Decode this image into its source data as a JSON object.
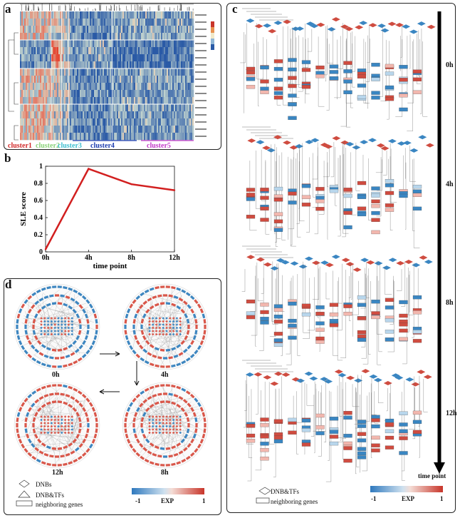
{
  "panels": {
    "a": {
      "label": "a"
    },
    "b": {
      "label": "b"
    },
    "c": {
      "label": "c"
    },
    "d": {
      "label": "d"
    }
  },
  "heatmap": {
    "clusters": [
      {
        "name": "cluster1",
        "color": "#d22b2b"
      },
      {
        "name": "cluster2",
        "color": "#8bd27a"
      },
      {
        "name": "cluster3",
        "color": "#3fbfd0"
      },
      {
        "name": "cluster4",
        "color": "#1f3fb0"
      },
      {
        "name": "cluster5",
        "color": "#c23ac8"
      }
    ],
    "colors": {
      "high": "#c8352a",
      "mid": "#f1e9c9",
      "low": "#2a5aa6"
    }
  },
  "chart_data": {
    "type": "line",
    "categories": [
      "0h",
      "4h",
      "8h",
      "12h"
    ],
    "values": [
      0.03,
      0.97,
      0.79,
      0.72
    ],
    "ylabel": "SLE score",
    "xlabel": "time point",
    "ylim": [
      0,
      1
    ],
    "yticks": [
      "0",
      "0.2",
      "0.4",
      "0.6",
      "0.8",
      "1"
    ],
    "line_color": "#d21f1f"
  },
  "networks": {
    "time_labels": [
      "0h",
      "4h",
      "12h",
      "8h"
    ]
  },
  "legend_d": {
    "items": [
      "DNBs",
      "DNB&TFs",
      "neighboring genes"
    ],
    "colorbar_min": "-1",
    "colorbar_max": "1",
    "colorbar_label": "EXP"
  },
  "panel_c": {
    "time_labels": [
      "0h",
      "4h",
      "8h",
      "12h"
    ],
    "axis_label": "time point",
    "legend_items": [
      "DNB&TFs",
      "neighboring genes"
    ],
    "colorbar_min": "-1",
    "colorbar_max": "1",
    "colorbar_label": "EXP"
  }
}
